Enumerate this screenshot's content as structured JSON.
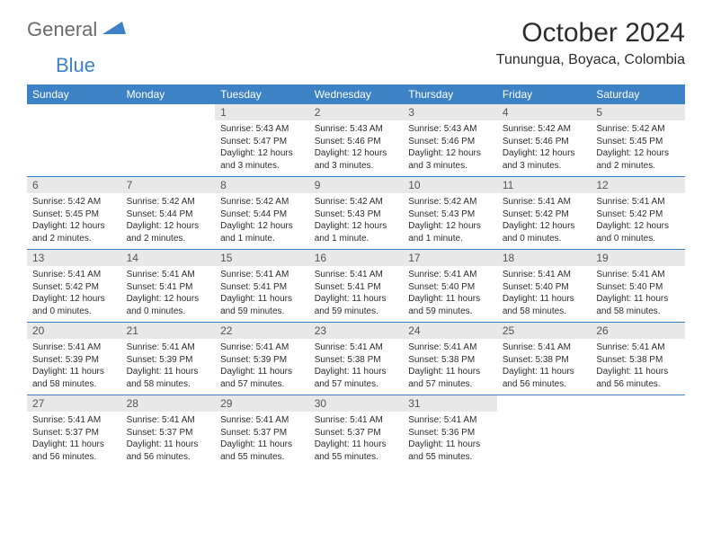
{
  "logo": {
    "word1": "General",
    "word2": "Blue",
    "shape_color": "#3d82c4",
    "text1_color": "#6b6b6b"
  },
  "title": "October 2024",
  "location": "Tunungua, Boyaca, Colombia",
  "header_bg": "#3d82c4",
  "header_fg": "#ffffff",
  "daynum_bg": "#e8e8e8",
  "border_color": "#3d82c4",
  "weekdays": [
    "Sunday",
    "Monday",
    "Tuesday",
    "Wednesday",
    "Thursday",
    "Friday",
    "Saturday"
  ],
  "weeks": [
    [
      {
        "n": "",
        "sr": "",
        "ss": "",
        "dl": ""
      },
      {
        "n": "",
        "sr": "",
        "ss": "",
        "dl": ""
      },
      {
        "n": "1",
        "sr": "Sunrise: 5:43 AM",
        "ss": "Sunset: 5:47 PM",
        "dl": "Daylight: 12 hours and 3 minutes."
      },
      {
        "n": "2",
        "sr": "Sunrise: 5:43 AM",
        "ss": "Sunset: 5:46 PM",
        "dl": "Daylight: 12 hours and 3 minutes."
      },
      {
        "n": "3",
        "sr": "Sunrise: 5:43 AM",
        "ss": "Sunset: 5:46 PM",
        "dl": "Daylight: 12 hours and 3 minutes."
      },
      {
        "n": "4",
        "sr": "Sunrise: 5:42 AM",
        "ss": "Sunset: 5:46 PM",
        "dl": "Daylight: 12 hours and 3 minutes."
      },
      {
        "n": "5",
        "sr": "Sunrise: 5:42 AM",
        "ss": "Sunset: 5:45 PM",
        "dl": "Daylight: 12 hours and 2 minutes."
      }
    ],
    [
      {
        "n": "6",
        "sr": "Sunrise: 5:42 AM",
        "ss": "Sunset: 5:45 PM",
        "dl": "Daylight: 12 hours and 2 minutes."
      },
      {
        "n": "7",
        "sr": "Sunrise: 5:42 AM",
        "ss": "Sunset: 5:44 PM",
        "dl": "Daylight: 12 hours and 2 minutes."
      },
      {
        "n": "8",
        "sr": "Sunrise: 5:42 AM",
        "ss": "Sunset: 5:44 PM",
        "dl": "Daylight: 12 hours and 1 minute."
      },
      {
        "n": "9",
        "sr": "Sunrise: 5:42 AM",
        "ss": "Sunset: 5:43 PM",
        "dl": "Daylight: 12 hours and 1 minute."
      },
      {
        "n": "10",
        "sr": "Sunrise: 5:42 AM",
        "ss": "Sunset: 5:43 PM",
        "dl": "Daylight: 12 hours and 1 minute."
      },
      {
        "n": "11",
        "sr": "Sunrise: 5:41 AM",
        "ss": "Sunset: 5:42 PM",
        "dl": "Daylight: 12 hours and 0 minutes."
      },
      {
        "n": "12",
        "sr": "Sunrise: 5:41 AM",
        "ss": "Sunset: 5:42 PM",
        "dl": "Daylight: 12 hours and 0 minutes."
      }
    ],
    [
      {
        "n": "13",
        "sr": "Sunrise: 5:41 AM",
        "ss": "Sunset: 5:42 PM",
        "dl": "Daylight: 12 hours and 0 minutes."
      },
      {
        "n": "14",
        "sr": "Sunrise: 5:41 AM",
        "ss": "Sunset: 5:41 PM",
        "dl": "Daylight: 12 hours and 0 minutes."
      },
      {
        "n": "15",
        "sr": "Sunrise: 5:41 AM",
        "ss": "Sunset: 5:41 PM",
        "dl": "Daylight: 11 hours and 59 minutes."
      },
      {
        "n": "16",
        "sr": "Sunrise: 5:41 AM",
        "ss": "Sunset: 5:41 PM",
        "dl": "Daylight: 11 hours and 59 minutes."
      },
      {
        "n": "17",
        "sr": "Sunrise: 5:41 AM",
        "ss": "Sunset: 5:40 PM",
        "dl": "Daylight: 11 hours and 59 minutes."
      },
      {
        "n": "18",
        "sr": "Sunrise: 5:41 AM",
        "ss": "Sunset: 5:40 PM",
        "dl": "Daylight: 11 hours and 58 minutes."
      },
      {
        "n": "19",
        "sr": "Sunrise: 5:41 AM",
        "ss": "Sunset: 5:40 PM",
        "dl": "Daylight: 11 hours and 58 minutes."
      }
    ],
    [
      {
        "n": "20",
        "sr": "Sunrise: 5:41 AM",
        "ss": "Sunset: 5:39 PM",
        "dl": "Daylight: 11 hours and 58 minutes."
      },
      {
        "n": "21",
        "sr": "Sunrise: 5:41 AM",
        "ss": "Sunset: 5:39 PM",
        "dl": "Daylight: 11 hours and 58 minutes."
      },
      {
        "n": "22",
        "sr": "Sunrise: 5:41 AM",
        "ss": "Sunset: 5:39 PM",
        "dl": "Daylight: 11 hours and 57 minutes."
      },
      {
        "n": "23",
        "sr": "Sunrise: 5:41 AM",
        "ss": "Sunset: 5:38 PM",
        "dl": "Daylight: 11 hours and 57 minutes."
      },
      {
        "n": "24",
        "sr": "Sunrise: 5:41 AM",
        "ss": "Sunset: 5:38 PM",
        "dl": "Daylight: 11 hours and 57 minutes."
      },
      {
        "n": "25",
        "sr": "Sunrise: 5:41 AM",
        "ss": "Sunset: 5:38 PM",
        "dl": "Daylight: 11 hours and 56 minutes."
      },
      {
        "n": "26",
        "sr": "Sunrise: 5:41 AM",
        "ss": "Sunset: 5:38 PM",
        "dl": "Daylight: 11 hours and 56 minutes."
      }
    ],
    [
      {
        "n": "27",
        "sr": "Sunrise: 5:41 AM",
        "ss": "Sunset: 5:37 PM",
        "dl": "Daylight: 11 hours and 56 minutes."
      },
      {
        "n": "28",
        "sr": "Sunrise: 5:41 AM",
        "ss": "Sunset: 5:37 PM",
        "dl": "Daylight: 11 hours and 56 minutes."
      },
      {
        "n": "29",
        "sr": "Sunrise: 5:41 AM",
        "ss": "Sunset: 5:37 PM",
        "dl": "Daylight: 11 hours and 55 minutes."
      },
      {
        "n": "30",
        "sr": "Sunrise: 5:41 AM",
        "ss": "Sunset: 5:37 PM",
        "dl": "Daylight: 11 hours and 55 minutes."
      },
      {
        "n": "31",
        "sr": "Sunrise: 5:41 AM",
        "ss": "Sunset: 5:36 PM",
        "dl": "Daylight: 11 hours and 55 minutes."
      },
      {
        "n": "",
        "sr": "",
        "ss": "",
        "dl": ""
      },
      {
        "n": "",
        "sr": "",
        "ss": "",
        "dl": ""
      }
    ]
  ]
}
